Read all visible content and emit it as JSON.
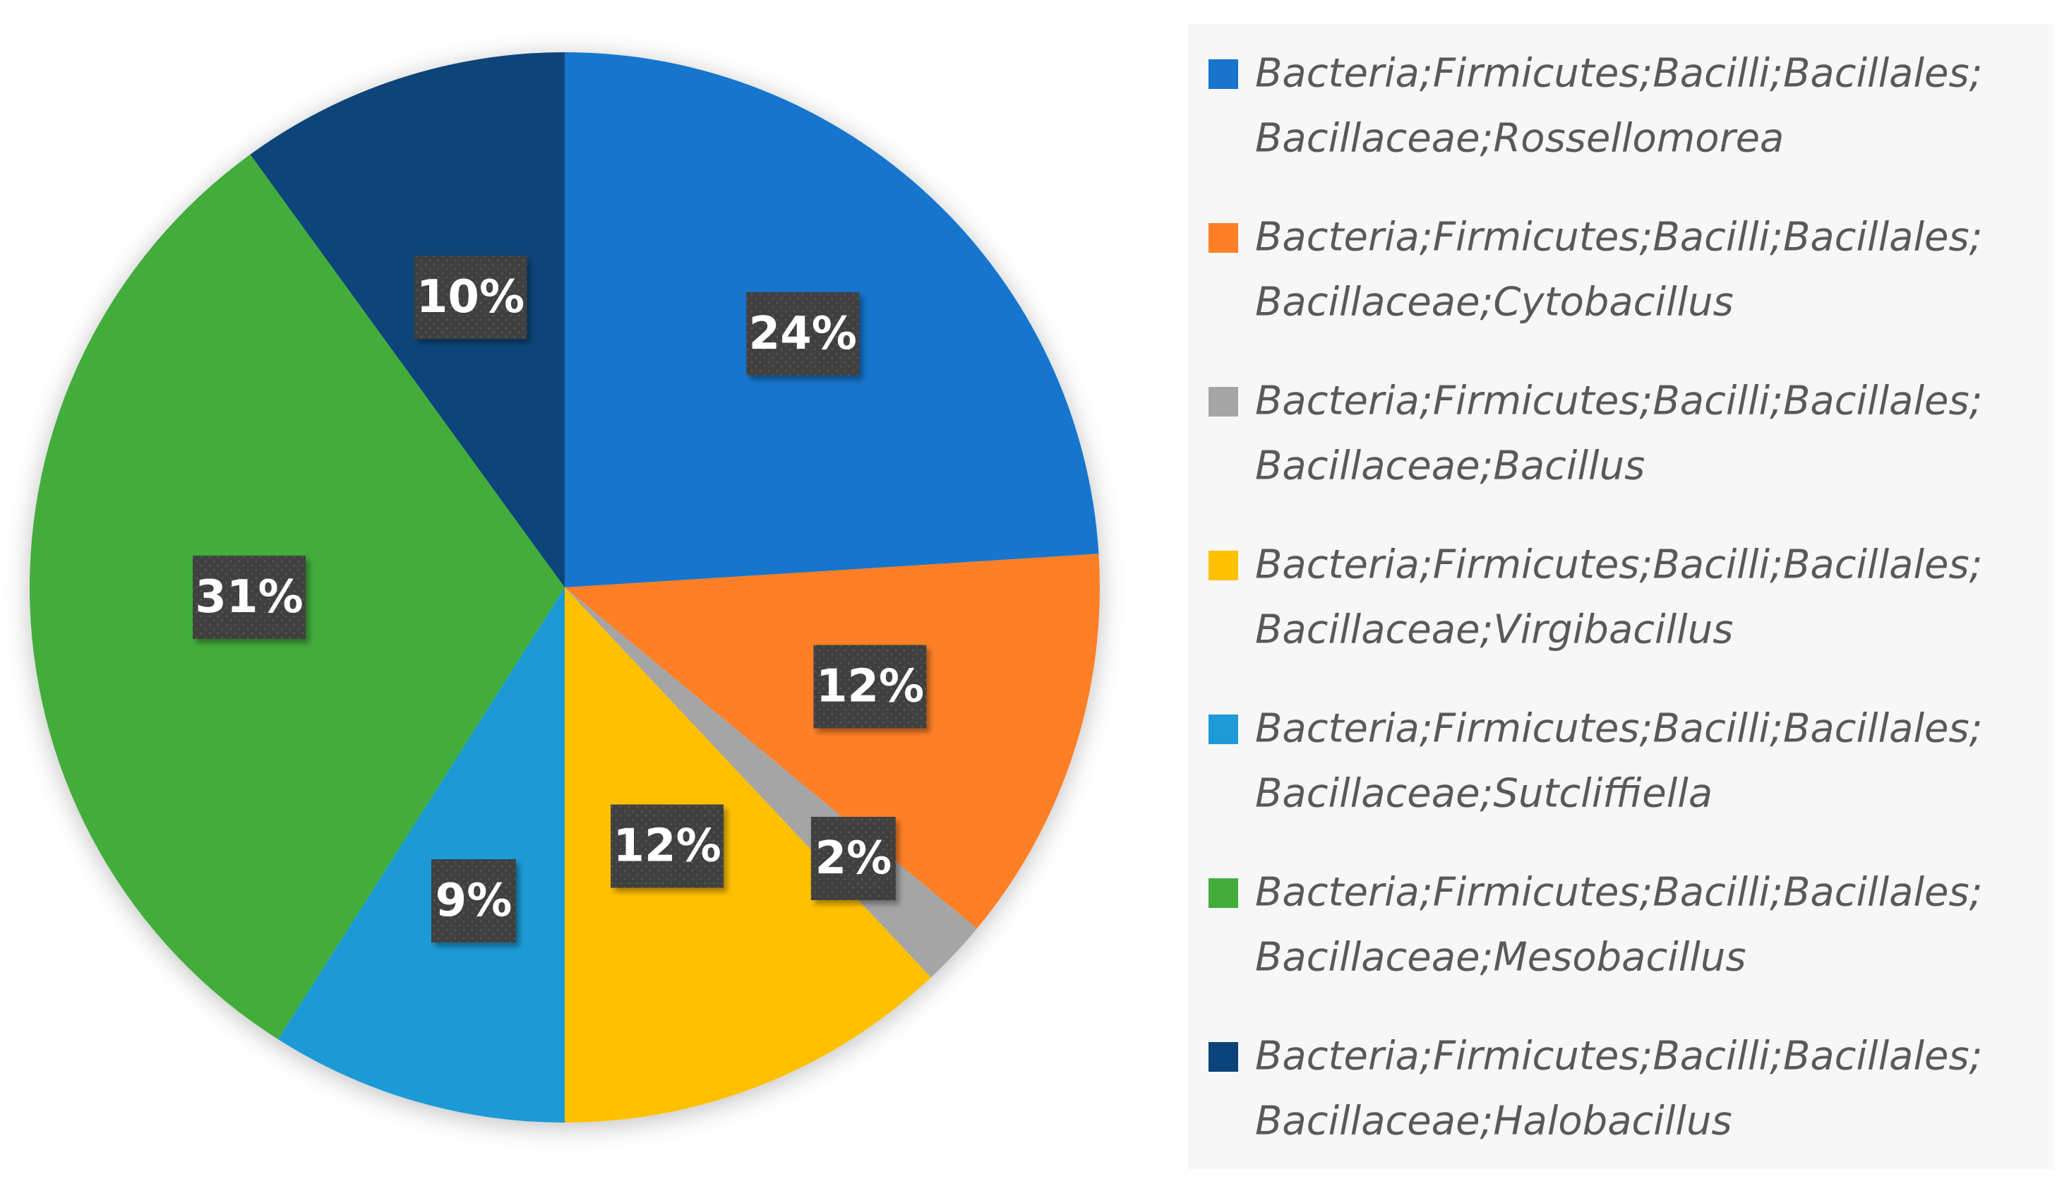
{
  "chart_data": {
    "type": "pie",
    "title": "",
    "legend_position": "right",
    "slices": [
      {
        "label_line1": "Bacteria;Firmicutes;Bacilli;Bacillales;",
        "label_line2": "Bacillaceae;Rossellomorea",
        "value": 24,
        "display": "24%",
        "color": "#1874CD"
      },
      {
        "label_line1": "Bacteria;Firmicutes;Bacilli;Bacillales;",
        "label_line2": "Bacillaceae;Cytobacillus",
        "value": 12,
        "display": "12%",
        "color": "#FF7F27"
      },
      {
        "label_line1": "Bacteria;Firmicutes;Bacilli;Bacillales;",
        "label_line2": "Bacillaceae;Bacillus",
        "value": 2,
        "display": "2%",
        "color": "#A5A5A5"
      },
      {
        "label_line1": "Bacteria;Firmicutes;Bacilli;Bacillales;",
        "label_line2": "Bacillaceae;Virgibacillus",
        "value": 12,
        "display": "12%",
        "color": "#FFC000"
      },
      {
        "label_line1": "Bacteria;Firmicutes;Bacilli;Bacillales;",
        "label_line2": "Bacillaceae;Sutcliffiella",
        "value": 9,
        "display": "9%",
        "color": "#1E9AD6"
      },
      {
        "label_line1": "Bacteria;Firmicutes;Bacilli;Bacillales;",
        "label_line2": "Bacillaceae;Mesobacillus",
        "value": 31,
        "display": "31%",
        "color": "#42AD3B"
      },
      {
        "label_line1": "Bacteria;Firmicutes;Bacilli;Bacillales;",
        "label_line2": "Bacillaceae;Halobacillus",
        "value": 10,
        "display": "10%",
        "color": "#0B447A"
      }
    ]
  }
}
